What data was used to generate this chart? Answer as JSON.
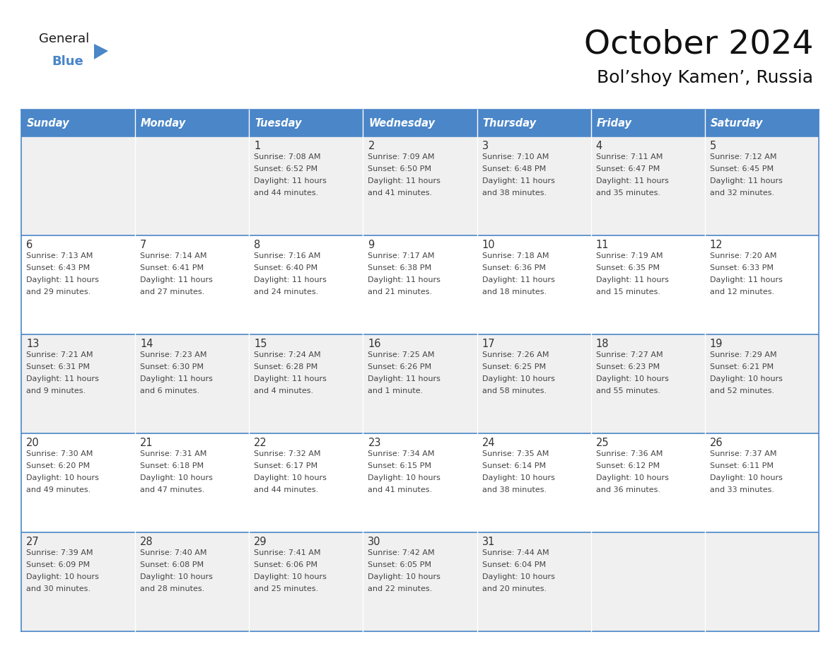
{
  "title": "October 2024",
  "subtitle": "Bol’shoy Kamen’, Russia",
  "days_of_week": [
    "Sunday",
    "Monday",
    "Tuesday",
    "Wednesday",
    "Thursday",
    "Friday",
    "Saturday"
  ],
  "header_bg": "#4A86C8",
  "header_text": "#FFFFFF",
  "row_bg_odd": "#F0F0F0",
  "row_bg_even": "#FFFFFF",
  "border_color": "#4A86C8",
  "text_color": "#444444",
  "day_num_color": "#333333",
  "calendar_data": [
    [
      {
        "day": null,
        "info": ""
      },
      {
        "day": null,
        "info": ""
      },
      {
        "day": 1,
        "info": "Sunrise: 7:08 AM\nSunset: 6:52 PM\nDaylight: 11 hours\nand 44 minutes."
      },
      {
        "day": 2,
        "info": "Sunrise: 7:09 AM\nSunset: 6:50 PM\nDaylight: 11 hours\nand 41 minutes."
      },
      {
        "day": 3,
        "info": "Sunrise: 7:10 AM\nSunset: 6:48 PM\nDaylight: 11 hours\nand 38 minutes."
      },
      {
        "day": 4,
        "info": "Sunrise: 7:11 AM\nSunset: 6:47 PM\nDaylight: 11 hours\nand 35 minutes."
      },
      {
        "day": 5,
        "info": "Sunrise: 7:12 AM\nSunset: 6:45 PM\nDaylight: 11 hours\nand 32 minutes."
      }
    ],
    [
      {
        "day": 6,
        "info": "Sunrise: 7:13 AM\nSunset: 6:43 PM\nDaylight: 11 hours\nand 29 minutes."
      },
      {
        "day": 7,
        "info": "Sunrise: 7:14 AM\nSunset: 6:41 PM\nDaylight: 11 hours\nand 27 minutes."
      },
      {
        "day": 8,
        "info": "Sunrise: 7:16 AM\nSunset: 6:40 PM\nDaylight: 11 hours\nand 24 minutes."
      },
      {
        "day": 9,
        "info": "Sunrise: 7:17 AM\nSunset: 6:38 PM\nDaylight: 11 hours\nand 21 minutes."
      },
      {
        "day": 10,
        "info": "Sunrise: 7:18 AM\nSunset: 6:36 PM\nDaylight: 11 hours\nand 18 minutes."
      },
      {
        "day": 11,
        "info": "Sunrise: 7:19 AM\nSunset: 6:35 PM\nDaylight: 11 hours\nand 15 minutes."
      },
      {
        "day": 12,
        "info": "Sunrise: 7:20 AM\nSunset: 6:33 PM\nDaylight: 11 hours\nand 12 minutes."
      }
    ],
    [
      {
        "day": 13,
        "info": "Sunrise: 7:21 AM\nSunset: 6:31 PM\nDaylight: 11 hours\nand 9 minutes."
      },
      {
        "day": 14,
        "info": "Sunrise: 7:23 AM\nSunset: 6:30 PM\nDaylight: 11 hours\nand 6 minutes."
      },
      {
        "day": 15,
        "info": "Sunrise: 7:24 AM\nSunset: 6:28 PM\nDaylight: 11 hours\nand 4 minutes."
      },
      {
        "day": 16,
        "info": "Sunrise: 7:25 AM\nSunset: 6:26 PM\nDaylight: 11 hours\nand 1 minute."
      },
      {
        "day": 17,
        "info": "Sunrise: 7:26 AM\nSunset: 6:25 PM\nDaylight: 10 hours\nand 58 minutes."
      },
      {
        "day": 18,
        "info": "Sunrise: 7:27 AM\nSunset: 6:23 PM\nDaylight: 10 hours\nand 55 minutes."
      },
      {
        "day": 19,
        "info": "Sunrise: 7:29 AM\nSunset: 6:21 PM\nDaylight: 10 hours\nand 52 minutes."
      }
    ],
    [
      {
        "day": 20,
        "info": "Sunrise: 7:30 AM\nSunset: 6:20 PM\nDaylight: 10 hours\nand 49 minutes."
      },
      {
        "day": 21,
        "info": "Sunrise: 7:31 AM\nSunset: 6:18 PM\nDaylight: 10 hours\nand 47 minutes."
      },
      {
        "day": 22,
        "info": "Sunrise: 7:32 AM\nSunset: 6:17 PM\nDaylight: 10 hours\nand 44 minutes."
      },
      {
        "day": 23,
        "info": "Sunrise: 7:34 AM\nSunset: 6:15 PM\nDaylight: 10 hours\nand 41 minutes."
      },
      {
        "day": 24,
        "info": "Sunrise: 7:35 AM\nSunset: 6:14 PM\nDaylight: 10 hours\nand 38 minutes."
      },
      {
        "day": 25,
        "info": "Sunrise: 7:36 AM\nSunset: 6:12 PM\nDaylight: 10 hours\nand 36 minutes."
      },
      {
        "day": 26,
        "info": "Sunrise: 7:37 AM\nSunset: 6:11 PM\nDaylight: 10 hours\nand 33 minutes."
      }
    ],
    [
      {
        "day": 27,
        "info": "Sunrise: 7:39 AM\nSunset: 6:09 PM\nDaylight: 10 hours\nand 30 minutes."
      },
      {
        "day": 28,
        "info": "Sunrise: 7:40 AM\nSunset: 6:08 PM\nDaylight: 10 hours\nand 28 minutes."
      },
      {
        "day": 29,
        "info": "Sunrise: 7:41 AM\nSunset: 6:06 PM\nDaylight: 10 hours\nand 25 minutes."
      },
      {
        "day": 30,
        "info": "Sunrise: 7:42 AM\nSunset: 6:05 PM\nDaylight: 10 hours\nand 22 minutes."
      },
      {
        "day": 31,
        "info": "Sunrise: 7:44 AM\nSunset: 6:04 PM\nDaylight: 10 hours\nand 20 minutes."
      },
      {
        "day": null,
        "info": ""
      },
      {
        "day": null,
        "info": ""
      }
    ]
  ],
  "logo_general_color": "#222222",
  "logo_blue_color": "#4A86C8",
  "logo_triangle_color": "#4A86C8"
}
